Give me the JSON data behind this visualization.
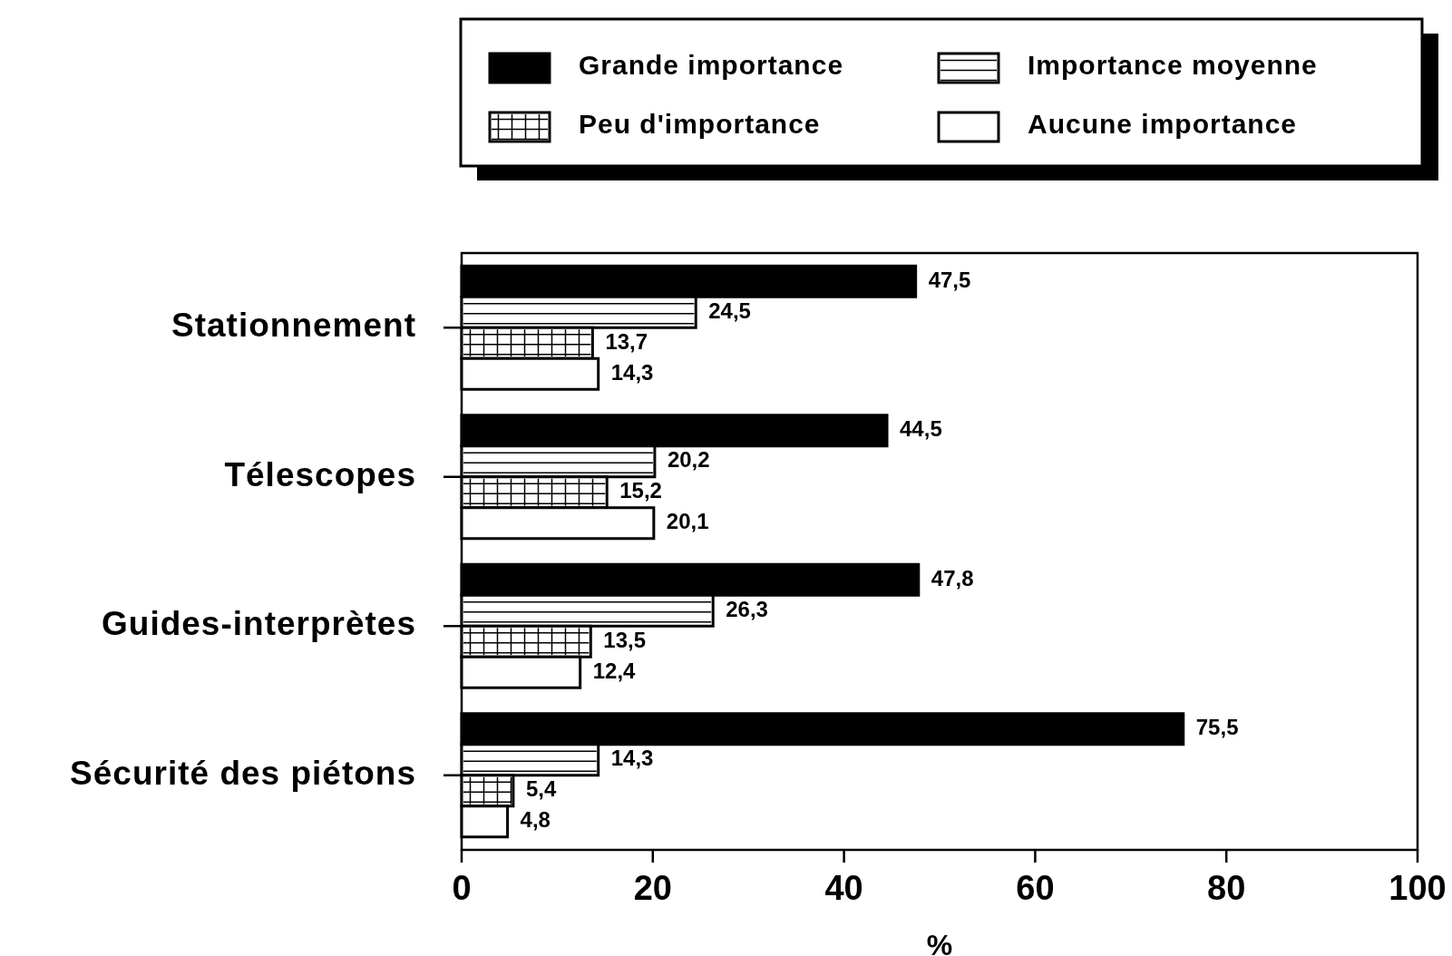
{
  "chart_data": {
    "type": "bar",
    "orientation": "horizontal",
    "xlabel": "%",
    "categories": [
      "Stationnement",
      "Télescopes",
      "Guides-interprètes",
      "Sécurité des piétons"
    ],
    "series": [
      {
        "name": "Grande importance",
        "color": "#000000",
        "values": [
          47.5,
          44.5,
          47.8,
          75.5
        ],
        "value_labels": [
          "47,5",
          "44,5",
          "47,8",
          "75,5"
        ]
      },
      {
        "name": "Importance moyenne",
        "color": "#ffffff",
        "values": [
          24.5,
          20.2,
          26.3,
          14.3
        ],
        "value_labels": [
          "24,5",
          "20,2",
          "26,3",
          "14,3"
        ]
      },
      {
        "name": "Peu d'importance",
        "color": "#ffffff",
        "values": [
          13.7,
          15.2,
          13.5,
          5.4
        ],
        "value_labels": [
          "13,7",
          "15,2",
          "13,5",
          "5,4"
        ]
      },
      {
        "name": "Aucune importance",
        "color": "#ffffff",
        "values": [
          14.3,
          20.1,
          12.4,
          4.8
        ],
        "value_labels": [
          "14,3",
          "20,1",
          "12,4",
          "4,8"
        ]
      }
    ],
    "xlim": [
      0,
      100
    ],
    "xticks": [
      0,
      20,
      40,
      60,
      80,
      100
    ],
    "legend": "top",
    "grid": false
  }
}
